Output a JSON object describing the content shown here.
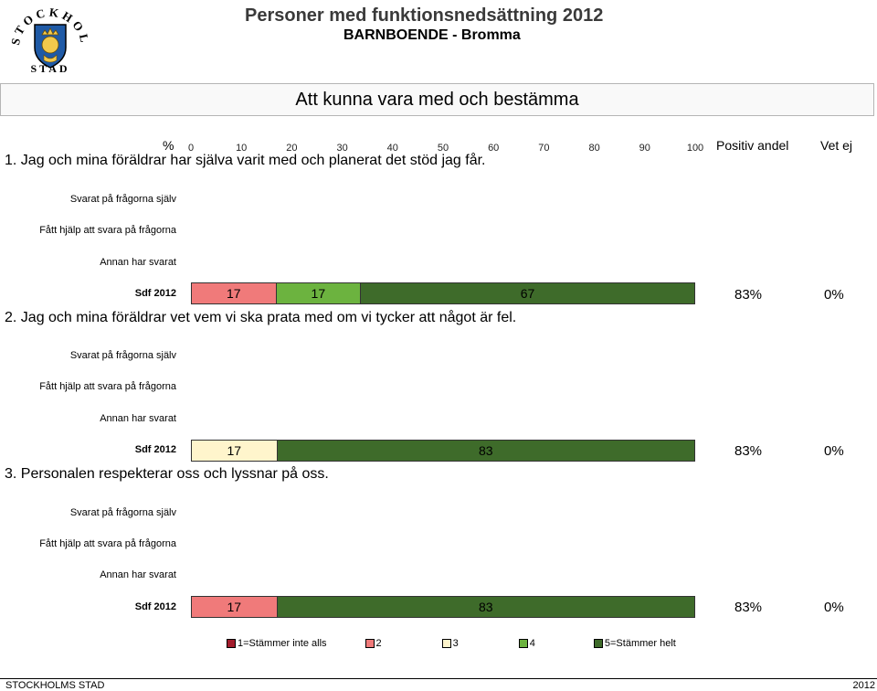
{
  "header": {
    "logo_text": "STOCKHOLMS STAD",
    "title": "Personer med funktionsnedsättning 2012",
    "subtitle": "BARNBOENDE - Bromma"
  },
  "section": {
    "title": "Att kunna vara med och bestämma"
  },
  "axis": {
    "pct_symbol": "%",
    "ticks": [
      "0",
      "10",
      "20",
      "30",
      "40",
      "50",
      "60",
      "70",
      "80",
      "90",
      "100"
    ]
  },
  "columns": {
    "positive": "Positiv andel",
    "dont_know": "Vet ej"
  },
  "row_labels": {
    "self": "Svarat på frågorna själv",
    "helped": "Fått hjälp att svara på frågorna",
    "other": "Annan har svarat",
    "sdf": "Sdf 2012"
  },
  "legend": [
    {
      "label": "1=Stämmer inte alls",
      "color": "#a21c2c"
    },
    {
      "label": "2",
      "color": "#f07a7a"
    },
    {
      "label": "3",
      "color": "#fff5cc"
    },
    {
      "label": "4",
      "color": "#6cb33f"
    },
    {
      "label": "5=Stämmer helt",
      "color": "#3e6b2a"
    }
  ],
  "footer": {
    "left": "STOCKHOLMS STAD",
    "right": "2012"
  },
  "chart_data": {
    "type": "bar",
    "orientation": "horizontal-stacked",
    "xlim": [
      0,
      100
    ],
    "questions": [
      {
        "text": "1. Jag och mina föräldrar har själva varit med och planerat det stöd jag får.",
        "row": "Sdf 2012",
        "segments": [
          {
            "category": "2",
            "value": 17,
            "color": "#f07a7a"
          },
          {
            "category": "4",
            "value": 17,
            "color": "#6cb33f"
          },
          {
            "category": "5=Stämmer helt",
            "value": 67,
            "color": "#3e6b2a"
          }
        ],
        "positive": "83%",
        "dont_know": "0%"
      },
      {
        "text": "2. Jag och mina föräldrar vet vem vi ska prata med om vi tycker att något är fel.",
        "row": "Sdf 2012",
        "segments": [
          {
            "category": "3",
            "value": 17,
            "color": "#fff5cc"
          },
          {
            "category": "5=Stämmer helt",
            "value": 83,
            "color": "#3e6b2a"
          }
        ],
        "positive": "83%",
        "dont_know": "0%"
      },
      {
        "text": "3. Personalen respekterar oss och lyssnar på oss.",
        "row": "Sdf 2012",
        "segments": [
          {
            "category": "2",
            "value": 17,
            "color": "#f07a7a"
          },
          {
            "category": "5=Stämmer helt",
            "value": 83,
            "color": "#3e6b2a"
          }
        ],
        "positive": "83%",
        "dont_know": "0%"
      }
    ]
  }
}
